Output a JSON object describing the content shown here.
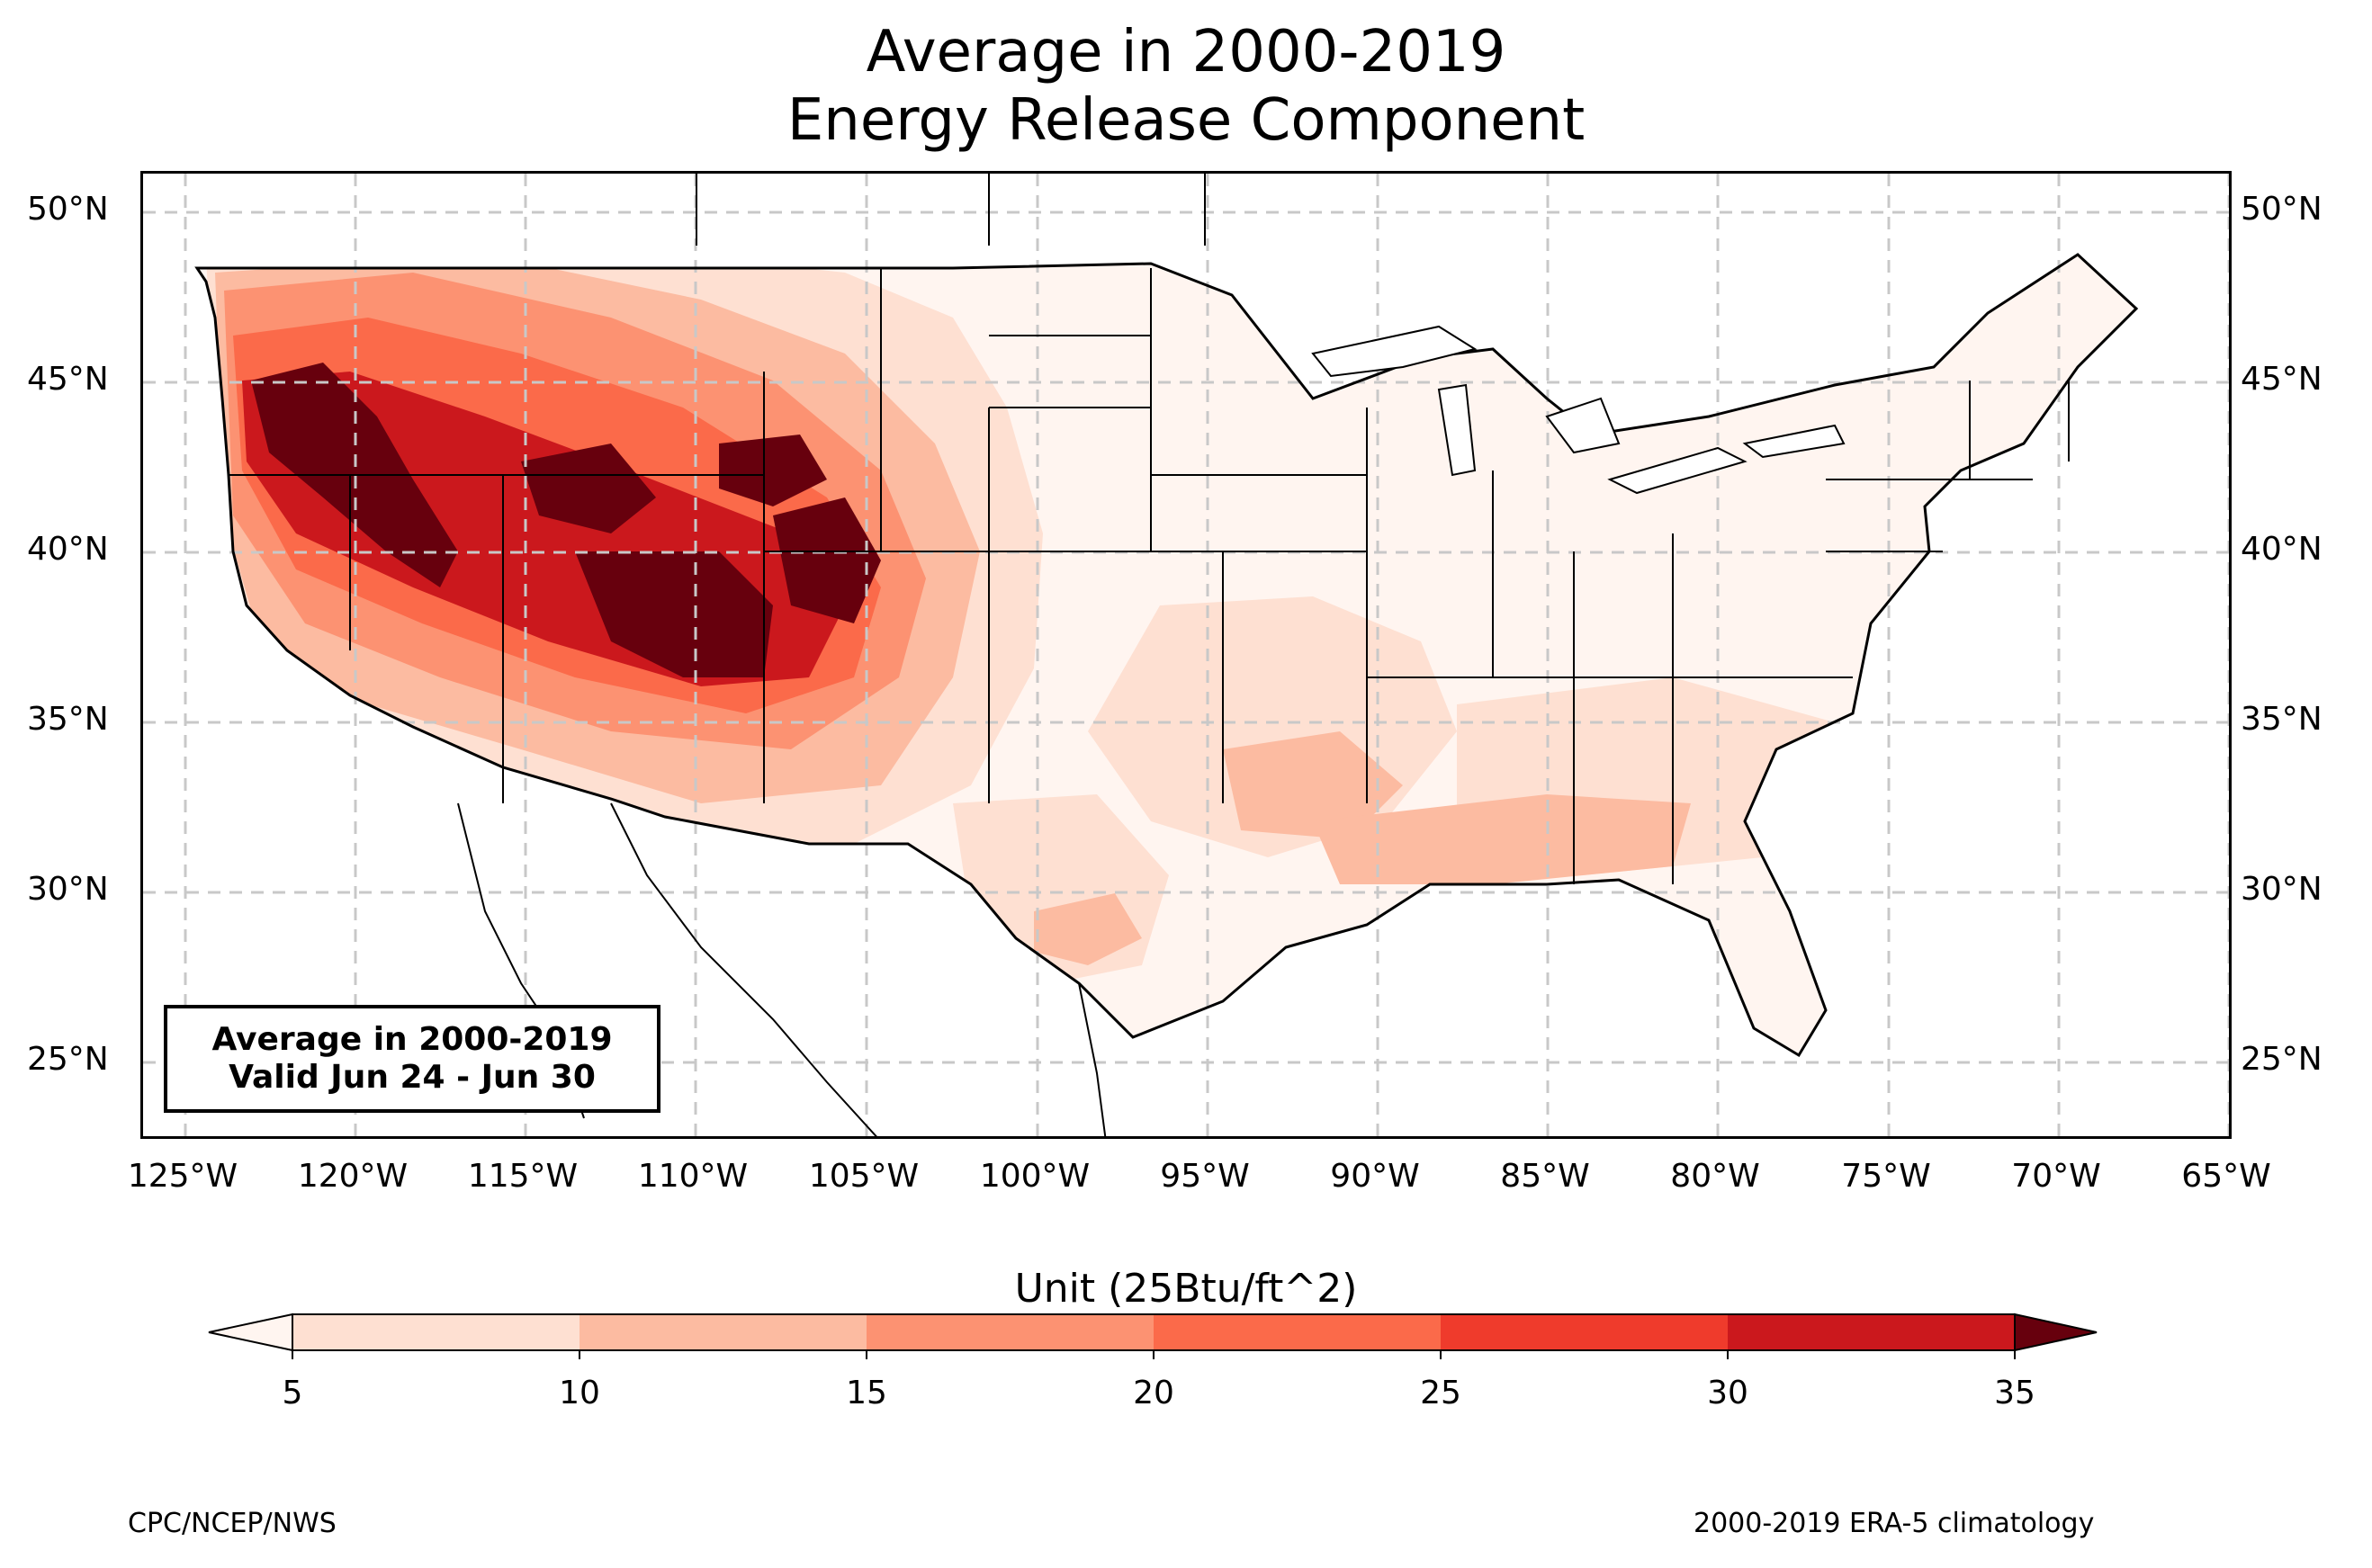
{
  "title": {
    "line1": "Average in 2000-2019",
    "line2": "Energy Release Component"
  },
  "map": {
    "lat_ticks": [
      "50°N",
      "45°N",
      "40°N",
      "35°N",
      "30°N",
      "25°N"
    ],
    "lon_ticks": [
      "125°W",
      "120°W",
      "115°W",
      "110°W",
      "105°W",
      "100°W",
      "95°W",
      "90°W",
      "85°W",
      "80°W",
      "75°W",
      "70°W",
      "65°W"
    ],
    "gridlines": true,
    "lon_range": [
      -126.2,
      -64.9
    ],
    "lat_range": [
      22.8,
      51.2
    ]
  },
  "info_box": {
    "line1": "Average in 2000-2019",
    "line2": "Valid Jun 24 - Jun 30"
  },
  "colorbar": {
    "label": "Unit (25Btu/ft^2)",
    "ticks": [
      "5",
      "10",
      "15",
      "20",
      "25",
      "30",
      "35"
    ],
    "colors": [
      "#fee0d2",
      "#fcbba1",
      "#fc9272",
      "#fb6a4a",
      "#ef3b2c",
      "#cb181d",
      "#a50f15"
    ],
    "under_color": "#fff5f0",
    "over_color": "#67000d"
  },
  "footer": {
    "left": "CPC/NCEP/NWS",
    "right": "2000-2019 ERA-5 climatology"
  }
}
